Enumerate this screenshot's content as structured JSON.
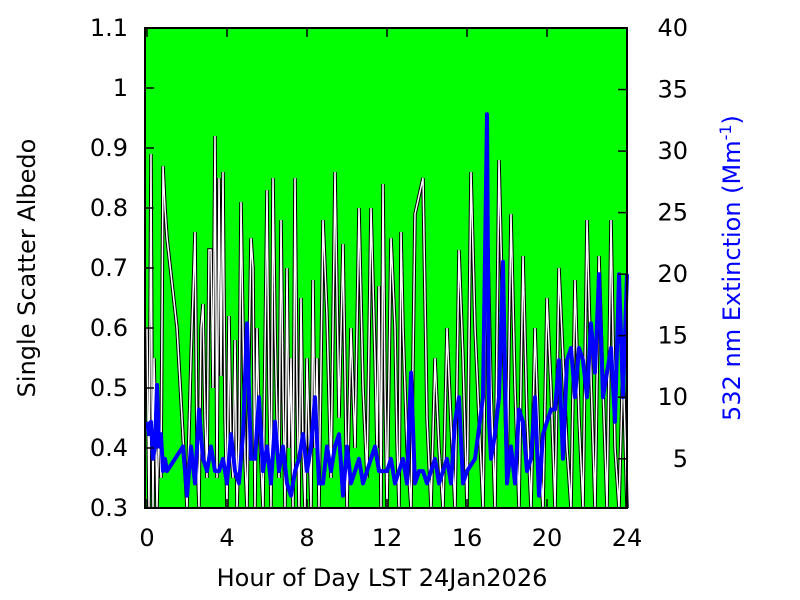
{
  "chart_data": {
    "type": "line",
    "xlabel": "Hour of Day LST 24Jan2026",
    "ylabel_left": "Single Scatter Albedo",
    "ylabel_right_main": "532 nm Extinction (Mm",
    "ylabel_right_sup": "-1",
    "ylabel_right_close": ")",
    "xlim": [
      -0.1,
      24
    ],
    "ylim_left": [
      0.3,
      1.1
    ],
    "ylim_right": [
      1,
      40
    ],
    "x_ticks": [
      0,
      4,
      8,
      12,
      16,
      20,
      24
    ],
    "x_tick_labels": [
      "0",
      "4",
      "8",
      "12",
      "16",
      "20",
      "24"
    ],
    "y_left_ticks": [
      0.3,
      0.4,
      0.5,
      0.6,
      0.7,
      0.8,
      0.9,
      1.0,
      1.1
    ],
    "y_left_tick_labels": [
      "0.3",
      "0.4",
      "0.5",
      "0.6",
      "0.7",
      "0.8",
      "0.9",
      "1",
      "1.1"
    ],
    "y_right_ticks": [
      5,
      10,
      15,
      20,
      25,
      30,
      35,
      40
    ],
    "y_right_tick_labels": [
      "5",
      "10",
      "15",
      "20",
      "25",
      "30",
      "35",
      "40"
    ],
    "grid": false,
    "colors": {
      "background": "#00ff00",
      "albedo_line": "#ffffff",
      "albedo_outline": "#000000",
      "extinction_line": "#0000ff",
      "right_axis_label": "#0000ff"
    },
    "series": [
      {
        "axis": "left",
        "x": [
          0.0,
          0.1,
          0.2,
          0.25,
          0.3,
          0.35,
          0.45,
          0.5,
          0.6,
          0.7,
          0.8,
          0.9,
          1.0,
          1.5,
          1.8,
          2.0,
          2.2,
          2.4,
          2.5,
          2.6,
          2.7,
          2.8,
          2.9,
          3.0,
          3.1,
          3.2,
          3.3,
          3.4,
          3.5,
          3.6,
          3.7,
          3.8,
          3.9,
          4.0,
          4.1,
          4.2,
          4.3,
          4.4,
          4.5,
          4.6,
          4.7,
          4.8,
          4.9,
          5.0,
          5.1,
          5.2,
          5.3,
          5.4,
          5.5,
          5.6,
          5.8,
          6.0,
          6.1,
          6.2,
          6.3,
          6.4,
          6.5,
          6.6,
          6.7,
          6.8,
          6.9,
          7.0,
          7.1,
          7.2,
          7.3,
          7.4,
          7.5,
          7.6,
          7.7,
          7.8,
          7.9,
          8.0,
          8.1,
          8.2,
          8.3,
          8.4,
          8.5,
          8.6,
          8.8,
          9.0,
          9.2,
          9.4,
          9.6,
          9.8,
          10.0,
          10.2,
          10.4,
          10.6,
          10.8,
          11.0,
          11.2,
          11.4,
          11.5,
          11.6,
          11.7,
          11.8,
          11.9,
          12.0,
          12.2,
          12.4,
          12.5,
          12.6,
          12.7,
          12.8,
          13.0,
          13.2,
          13.4,
          13.6,
          13.8,
          14.0,
          14.2,
          14.4,
          14.6,
          14.8,
          15.0,
          15.2,
          15.4,
          15.6,
          15.8,
          16.0,
          16.2,
          16.4,
          16.6,
          16.8,
          17.0,
          17.2,
          17.4,
          17.6,
          17.8,
          18.0,
          18.2,
          18.4,
          18.6,
          18.8,
          19.0,
          19.2,
          19.4,
          19.6,
          19.8,
          20.0,
          20.2,
          20.4,
          20.6,
          20.8,
          21.0,
          21.2,
          21.4,
          21.6,
          21.8,
          22.0,
          22.2,
          22.4,
          22.6,
          22.8,
          23.0,
          23.2,
          23.4,
          23.6,
          23.8,
          24.0
        ],
        "y": [
          0.6,
          0.3,
          0.89,
          0.5,
          0.3,
          0.55,
          0.4,
          0.3,
          0.45,
          0.35,
          0.87,
          0.8,
          0.75,
          0.6,
          0.42,
          0.3,
          0.55,
          0.76,
          0.4,
          0.3,
          0.6,
          0.64,
          0.45,
          0.35,
          0.73,
          0.73,
          0.5,
          0.92,
          0.35,
          0.85,
          0.52,
          0.86,
          0.45,
          0.3,
          0.62,
          0.4,
          0.35,
          0.58,
          0.3,
          0.42,
          0.81,
          0.6,
          0.38,
          0.3,
          0.55,
          0.75,
          0.7,
          0.3,
          0.6,
          0.45,
          0.3,
          0.83,
          0.5,
          0.3,
          0.85,
          0.6,
          0.45,
          0.35,
          0.78,
          0.5,
          0.3,
          0.7,
          0.4,
          0.55,
          0.3,
          0.85,
          0.5,
          0.3,
          0.65,
          0.4,
          0.3,
          0.55,
          0.42,
          0.3,
          0.68,
          0.4,
          0.55,
          0.3,
          0.78,
          0.62,
          0.35,
          0.86,
          0.45,
          0.74,
          0.3,
          0.6,
          0.4,
          0.8,
          0.5,
          0.35,
          0.8,
          0.55,
          0.4,
          0.67,
          0.3,
          0.84,
          0.5,
          0.3,
          0.75,
          0.6,
          0.41,
          0.3,
          0.76,
          0.6,
          0.4,
          0.3,
          0.79,
          0.82,
          0.85,
          0.45,
          0.3,
          0.55,
          0.4,
          0.3,
          0.6,
          0.44,
          0.3,
          0.73,
          0.55,
          0.3,
          0.86,
          0.6,
          0.45,
          0.3,
          0.8,
          0.5,
          0.3,
          0.88,
          0.6,
          0.35,
          0.79,
          0.5,
          0.3,
          0.72,
          0.45,
          0.3,
          0.6,
          0.4,
          0.3,
          0.65,
          0.5,
          0.3,
          0.7,
          0.55,
          0.4,
          0.3,
          0.68,
          0.45,
          0.3,
          0.78,
          0.52,
          0.3,
          0.72,
          0.5,
          0.3,
          0.78,
          0.4,
          0.3,
          0.55,
          0.3
        ]
      },
      {
        "axis": "right",
        "x": [
          0.0,
          0.1,
          0.2,
          0.3,
          0.4,
          0.5,
          0.6,
          0.7,
          0.8,
          0.9,
          1.0,
          1.4,
          1.8,
          2.0,
          2.2,
          2.4,
          2.6,
          2.8,
          3.0,
          3.2,
          3.4,
          3.6,
          3.8,
          4.0,
          4.2,
          4.4,
          4.6,
          4.8,
          5.0,
          5.2,
          5.4,
          5.6,
          5.8,
          6.0,
          6.2,
          6.4,
          6.6,
          6.8,
          7.0,
          7.2,
          7.4,
          7.6,
          7.8,
          8.0,
          8.2,
          8.4,
          8.6,
          8.8,
          9.0,
          9.2,
          9.4,
          9.6,
          9.8,
          10.0,
          10.2,
          10.4,
          10.6,
          10.8,
          11.0,
          11.2,
          11.4,
          11.6,
          11.8,
          12.0,
          12.2,
          12.4,
          12.6,
          12.8,
          13.0,
          13.2,
          13.4,
          13.6,
          13.8,
          14.0,
          14.2,
          14.4,
          14.6,
          14.8,
          15.0,
          15.2,
          15.4,
          15.6,
          15.8,
          16.0,
          16.4,
          16.8,
          17.0,
          17.1,
          17.2,
          17.4,
          17.6,
          17.8,
          18.0,
          18.2,
          18.4,
          18.6,
          18.8,
          19.0,
          19.2,
          19.4,
          19.6,
          19.8,
          20.0,
          20.2,
          20.4,
          20.6,
          20.8,
          21.0,
          21.2,
          21.4,
          21.6,
          21.8,
          22.0,
          22.2,
          22.4,
          22.6,
          22.8,
          23.0,
          23.2,
          23.4,
          23.6,
          23.8,
          24.0
        ],
        "y": [
          8,
          7,
          8,
          5,
          6,
          11,
          6,
          7,
          4,
          5,
          4,
          5,
          6,
          2,
          6,
          3,
          9,
          5,
          4,
          6,
          4,
          4,
          5,
          3,
          7,
          4,
          3,
          7,
          16,
          5,
          5,
          10,
          4,
          6,
          3,
          8,
          4,
          6,
          3,
          2,
          4,
          5,
          7,
          4,
          6,
          10,
          3,
          3,
          6,
          4,
          6,
          7,
          2,
          6,
          3,
          4,
          5,
          3,
          4,
          5,
          6,
          4,
          4,
          4,
          5,
          3,
          4,
          5,
          3,
          12,
          3,
          4,
          4,
          3,
          4,
          5,
          3,
          4,
          5,
          3,
          8,
          10,
          3,
          4,
          5,
          10,
          33,
          8,
          5,
          7,
          10,
          21,
          3,
          6,
          3,
          9,
          8,
          4,
          5,
          10,
          2,
          7,
          8,
          9,
          9,
          13,
          5,
          13,
          14,
          10,
          14,
          13,
          10,
          16,
          12,
          20,
          10,
          12,
          14,
          8,
          20,
          10,
          20
        ]
      }
    ]
  }
}
